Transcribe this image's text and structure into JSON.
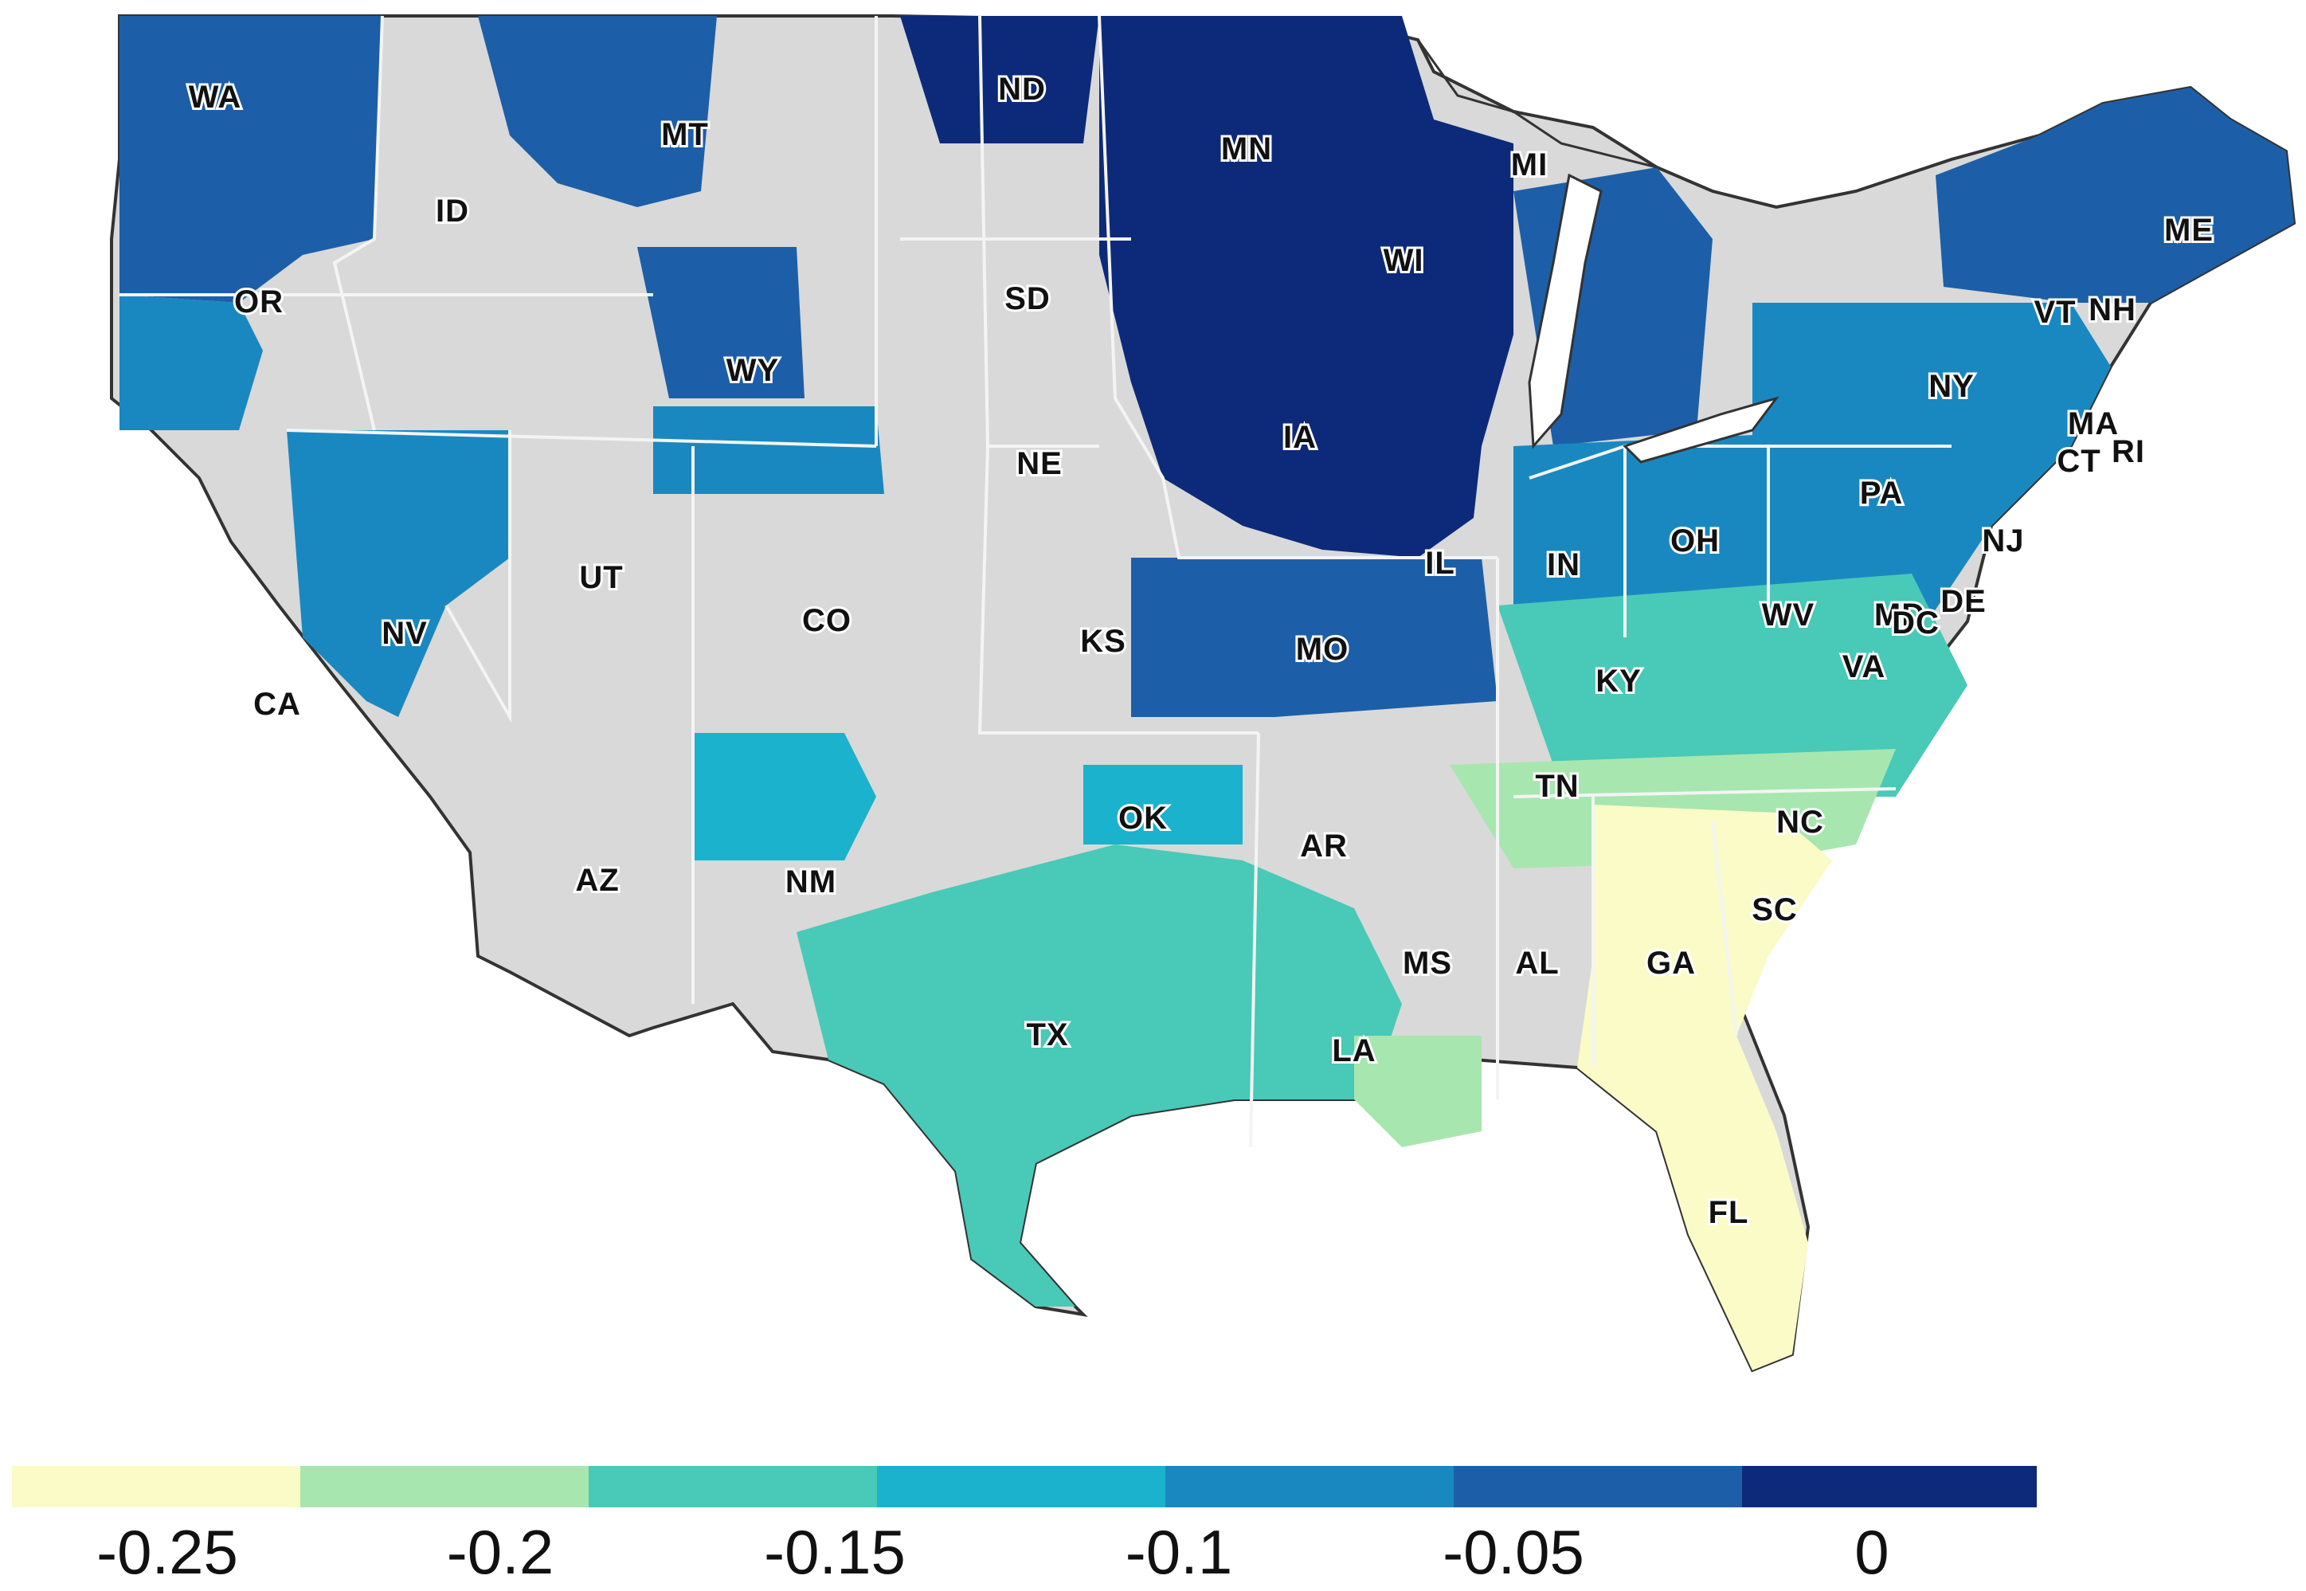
{
  "map": {
    "land_color": "#d9d9d9",
    "county_line_color": "#b0b0b0",
    "state_line_color": "#ffffff",
    "states": [
      {
        "abbr": "WA",
        "fill": "#1c5fa8"
      },
      {
        "abbr": "OR",
        "fill": "#1c5fa8"
      },
      {
        "abbr": "ID",
        "fill": "#d9d9d9"
      },
      {
        "abbr": "MT",
        "fill": "#d9d9d9"
      },
      {
        "abbr": "ND",
        "fill": "#d9d9d9"
      },
      {
        "abbr": "MN",
        "fill": "#0d2a7a"
      },
      {
        "abbr": "MI",
        "fill": "#0d2a7a"
      },
      {
        "abbr": "WI",
        "fill": "#0d2a7a"
      },
      {
        "abbr": "SD",
        "fill": "#d9d9d9"
      },
      {
        "abbr": "WY",
        "fill": "#1c5fa8"
      },
      {
        "abbr": "NE",
        "fill": "#d9d9d9"
      },
      {
        "abbr": "IA",
        "fill": "#0d2a7a"
      },
      {
        "abbr": "UT",
        "fill": "#d9d9d9"
      },
      {
        "abbr": "NV",
        "fill": "#d9d9d9"
      },
      {
        "abbr": "CA",
        "fill": "#d9d9d9"
      },
      {
        "abbr": "CO",
        "fill": "#d9d9d9"
      },
      {
        "abbr": "KS",
        "fill": "#d9d9d9"
      },
      {
        "abbr": "MO",
        "fill": "#1c5fa8"
      },
      {
        "abbr": "IL",
        "fill": "#1c5fa8"
      },
      {
        "abbr": "IN",
        "fill": "#1a88c0"
      },
      {
        "abbr": "OH",
        "fill": "#1aa8c4"
      },
      {
        "abbr": "KY",
        "fill": "#49c9b7"
      },
      {
        "abbr": "WV",
        "fill": "#49c9b7"
      },
      {
        "abbr": "VA",
        "fill": "#49c9b7"
      },
      {
        "abbr": "PA",
        "fill": "#1a88c0"
      },
      {
        "abbr": "NY",
        "fill": "#1a88c0"
      },
      {
        "abbr": "ME",
        "fill": "#1c5fa8"
      },
      {
        "abbr": "VT",
        "fill": "#1c5fa8"
      },
      {
        "abbr": "NH",
        "fill": "#1c5fa8"
      },
      {
        "abbr": "MA",
        "fill": "#1a88c0"
      },
      {
        "abbr": "CT",
        "fill": "#1a88c0"
      },
      {
        "abbr": "RI",
        "fill": "#1a88c0"
      },
      {
        "abbr": "NJ",
        "fill": "#1a88c0"
      },
      {
        "abbr": "DE",
        "fill": "#1a88c0"
      },
      {
        "abbr": "MD",
        "fill": "#1a88c0"
      },
      {
        "abbr": "DC",
        "fill": "#1a88c0"
      },
      {
        "abbr": "AZ",
        "fill": "#d9d9d9"
      },
      {
        "abbr": "NM",
        "fill": "#d9d9d9"
      },
      {
        "abbr": "OK",
        "fill": "#49c9b7"
      },
      {
        "abbr": "TX",
        "fill": "#49c9b7"
      },
      {
        "abbr": "AR",
        "fill": "#d9d9d9"
      },
      {
        "abbr": "TN",
        "fill": "#a8e6b0"
      },
      {
        "abbr": "NC",
        "fill": "#a8e6b0"
      },
      {
        "abbr": "SC",
        "fill": "#fbfbc8"
      },
      {
        "abbr": "MS",
        "fill": "#d9d9d9"
      },
      {
        "abbr": "AL",
        "fill": "#d9d9d9"
      },
      {
        "abbr": "GA",
        "fill": "#fbfbc8"
      },
      {
        "abbr": "LA",
        "fill": "#a8e6b0"
      },
      {
        "abbr": "FL",
        "fill": "#fbfbc8"
      }
    ]
  },
  "legend": {
    "colors": [
      "#fbfbc8",
      "#a8e6b0",
      "#49c9b7",
      "#1ab2cc",
      "#1a88c0",
      "#1c5fa8",
      "#0d2a7a"
    ],
    "tick_labels": [
      "-0.25",
      "-0.2",
      "-0.15",
      "-0.1",
      "-0.05",
      "0"
    ]
  }
}
